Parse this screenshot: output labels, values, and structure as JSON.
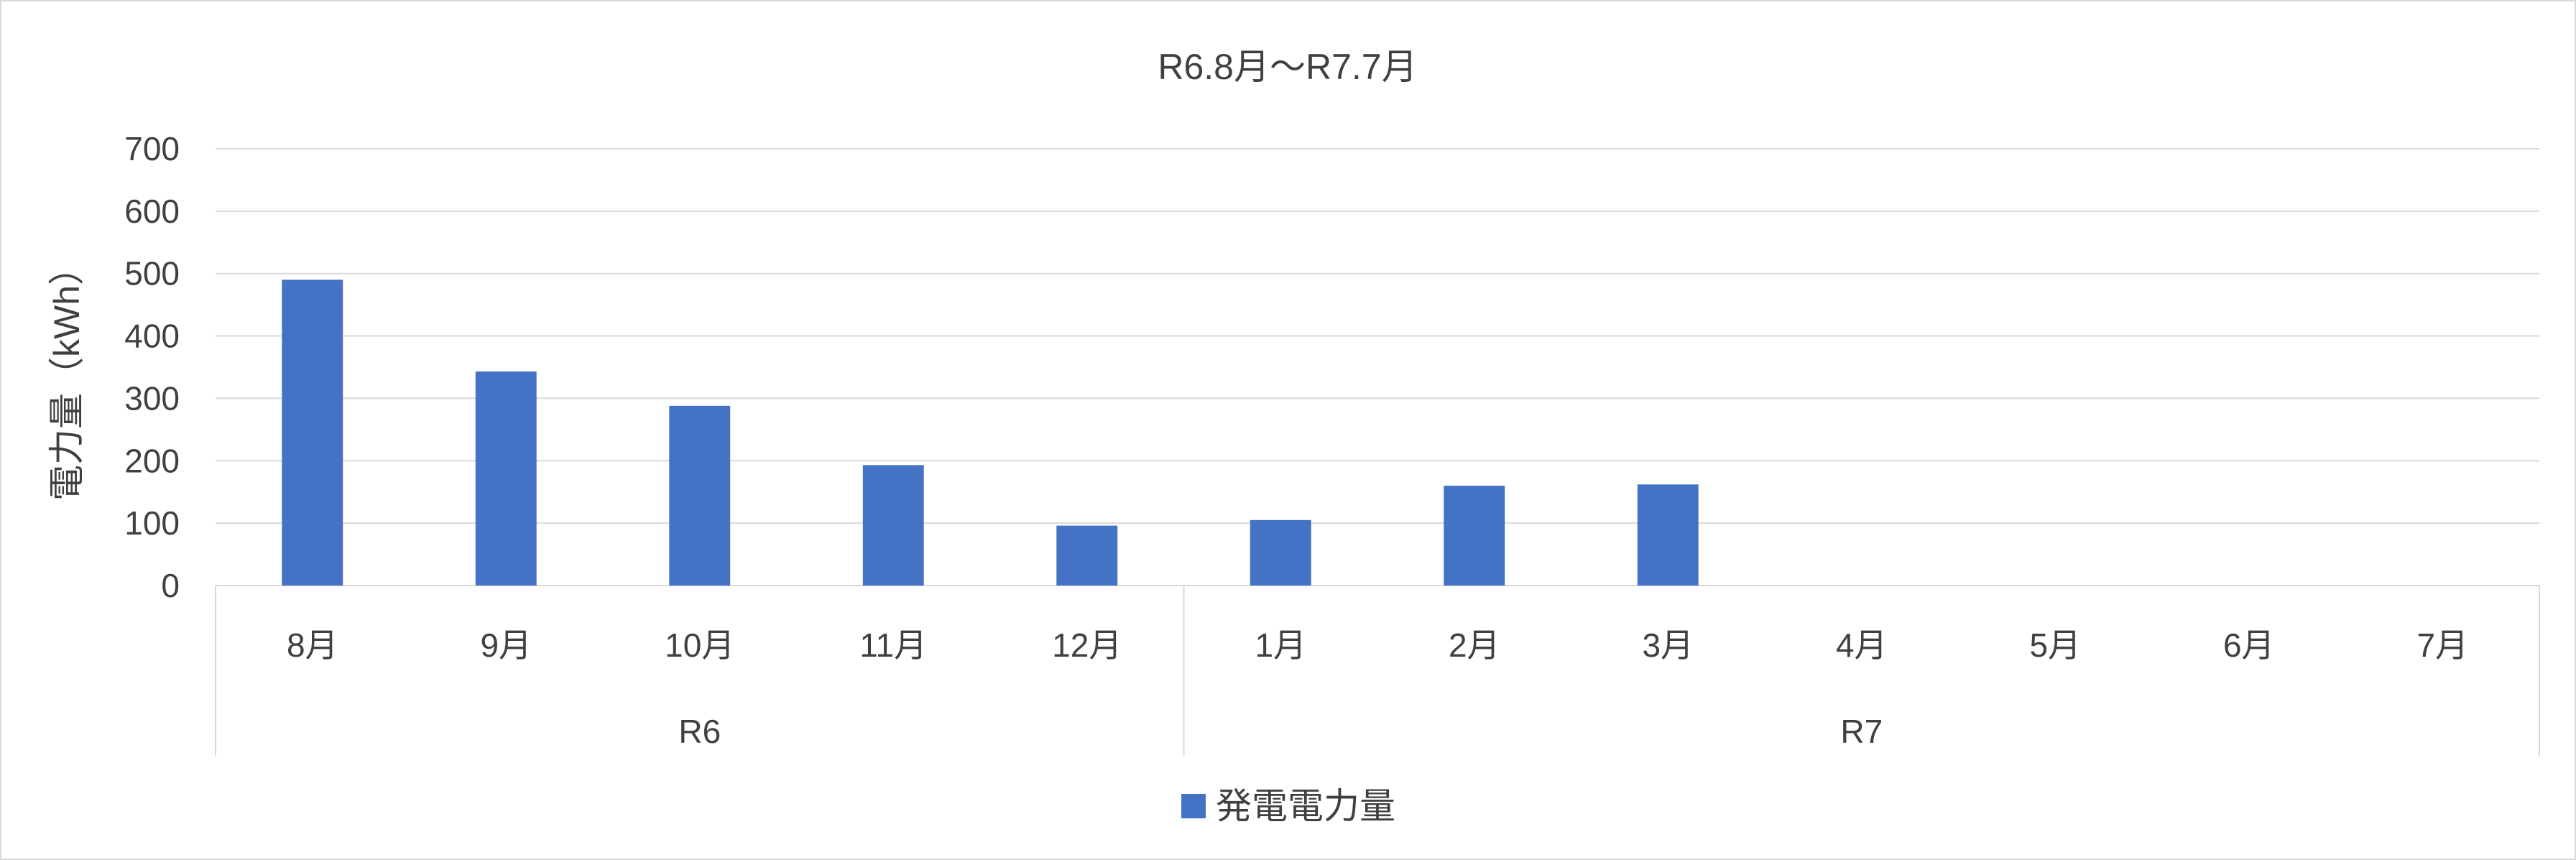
{
  "chart_data": {
    "type": "bar",
    "title": "R6.8月～R7.7月",
    "ylabel": "電力量（kWh）",
    "xlabel": "",
    "ylim": [
      0,
      700
    ],
    "yticks": [
      0,
      100,
      200,
      300,
      400,
      500,
      600,
      700
    ],
    "categories": [
      "8月",
      "9月",
      "10月",
      "11月",
      "12月",
      "1月",
      "2月",
      "3月",
      "4月",
      "5月",
      "6月",
      "7月"
    ],
    "groups": [
      {
        "label": "R6",
        "span": 5
      },
      {
        "label": "R7",
        "span": 7
      }
    ],
    "series": [
      {
        "name": "発電電力量",
        "color": "#4472c4",
        "values": [
          490,
          343,
          288,
          193,
          96,
          105,
          160,
          162,
          null,
          null,
          null,
          null
        ]
      }
    ],
    "grid": true,
    "legend": "bottom"
  }
}
